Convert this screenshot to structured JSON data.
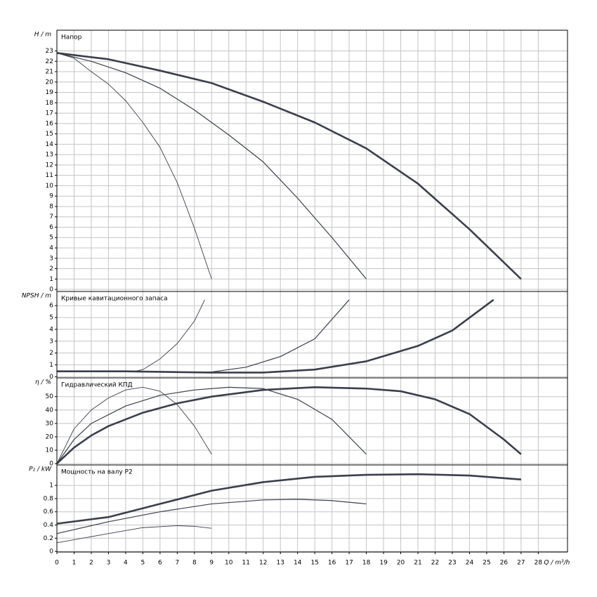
{
  "chart_data": [
    {
      "type": "line",
      "title": "Напор",
      "ylabel": "H / m",
      "color": "#3a3f4a",
      "grid": true,
      "xlim": [
        0,
        29.7
      ],
      "ylim": [
        -0.2,
        25
      ],
      "yticks": [
        0,
        1,
        2,
        3,
        4,
        5,
        6,
        7,
        8,
        9,
        10,
        11,
        12,
        13,
        14,
        15,
        16,
        17,
        18,
        19,
        20,
        21,
        22,
        23
      ],
      "series": [
        {
          "x": [
            0,
            3,
            6,
            9,
            12,
            15,
            18,
            21,
            24,
            27
          ],
          "values": [
            22.8,
            22.2,
            21.1,
            19.9,
            18.1,
            16.1,
            13.6,
            10.2,
            5.8,
            1.0
          ]
        },
        {
          "x": [
            0,
            2,
            4,
            6,
            8,
            10,
            12,
            14,
            16,
            18
          ],
          "values": [
            22.8,
            22.0,
            20.9,
            19.4,
            17.3,
            14.9,
            12.3,
            8.8,
            5.0,
            1.0
          ]
        },
        {
          "x": [
            0,
            1,
            2,
            3,
            4,
            5,
            6,
            7,
            8,
            9
          ],
          "values": [
            22.8,
            22.3,
            21.0,
            19.8,
            18.2,
            16.1,
            13.7,
            10.3,
            5.9,
            1.0
          ]
        }
      ]
    },
    {
      "type": "line",
      "title": "Кривые кавитационного запаса",
      "ylabel": "NPSH / m",
      "color": "#3a3f4a",
      "grid": true,
      "xlim": [
        0,
        29.7
      ],
      "ylim": [
        -0.1,
        7.2
      ],
      "yticks": [
        0,
        1,
        2,
        3,
        4,
        5,
        6
      ],
      "series": [
        {
          "x": [
            0,
            4,
            9,
            12,
            15,
            18,
            21,
            23,
            25.4
          ],
          "values": [
            0.45,
            0.45,
            0.35,
            0.35,
            0.6,
            1.3,
            2.6,
            3.9,
            6.5
          ]
        },
        {
          "x": [
            0,
            5,
            9,
            11,
            13,
            15,
            17
          ],
          "values": [
            0.45,
            0.4,
            0.4,
            0.8,
            1.7,
            3.2,
            6.5
          ]
        },
        {
          "x": [
            0,
            4.5,
            5,
            6,
            7,
            8,
            8.6
          ],
          "values": [
            0.45,
            0.45,
            0.6,
            1.5,
            2.8,
            4.7,
            6.5
          ]
        }
      ]
    },
    {
      "type": "line",
      "title": "Гидравлический КПД",
      "ylabel": "η / %",
      "color": "#3a3f4a",
      "grid": true,
      "xlim": [
        0,
        29.7
      ],
      "ylim": [
        -1,
        64
      ],
      "yticks": [
        0,
        10,
        20,
        30,
        40,
        50
      ],
      "series": [
        {
          "x": [
            0,
            1,
            2,
            3,
            5,
            7,
            9,
            12,
            15,
            18,
            20,
            22,
            24,
            26,
            27
          ],
          "values": [
            0,
            12,
            21,
            28,
            38,
            45,
            50,
            55,
            57,
            56,
            54,
            48,
            37,
            18,
            7
          ]
        },
        {
          "x": [
            0,
            1,
            2,
            4,
            6,
            8,
            10,
            12,
            14,
            16,
            18
          ],
          "values": [
            0,
            18,
            30,
            43,
            51,
            55,
            57,
            56,
            48,
            33,
            7
          ]
        },
        {
          "x": [
            0,
            1,
            2,
            3,
            4,
            5,
            6,
            7,
            8,
            9
          ],
          "values": [
            0,
            26,
            40,
            49,
            55,
            57,
            54,
            44,
            28,
            7
          ]
        }
      ]
    },
    {
      "type": "line",
      "title": "Мощность на валу P2",
      "ylabel": "P₂ / kW",
      "xlabel": "Q / m³/h",
      "color": "#3a3f4a",
      "grid": true,
      "xlim": [
        0,
        29.7
      ],
      "xticks": [
        0,
        1,
        2,
        3,
        4,
        5,
        6,
        7,
        8,
        9,
        10,
        11,
        12,
        13,
        14,
        15,
        16,
        17,
        18,
        19,
        20,
        21,
        22,
        23,
        24,
        25,
        26,
        27,
        28
      ],
      "ylim": [
        -0.01,
        1.31
      ],
      "yticks": [
        0,
        0.2,
        0.4,
        0.6,
        0.8,
        1
      ],
      "series": [
        {
          "x": [
            0,
            3,
            6,
            9,
            12,
            15,
            18,
            21,
            24,
            27
          ],
          "values": [
            0.42,
            0.52,
            0.72,
            0.92,
            1.05,
            1.13,
            1.16,
            1.17,
            1.15,
            1.09
          ]
        },
        {
          "x": [
            0,
            3,
            6,
            9,
            12,
            14,
            16,
            18
          ],
          "values": [
            0.27,
            0.45,
            0.6,
            0.72,
            0.78,
            0.79,
            0.77,
            0.72
          ]
        },
        {
          "x": [
            0,
            3,
            5,
            7,
            8,
            9
          ],
          "values": [
            0.13,
            0.27,
            0.36,
            0.39,
            0.38,
            0.35
          ]
        }
      ]
    }
  ]
}
